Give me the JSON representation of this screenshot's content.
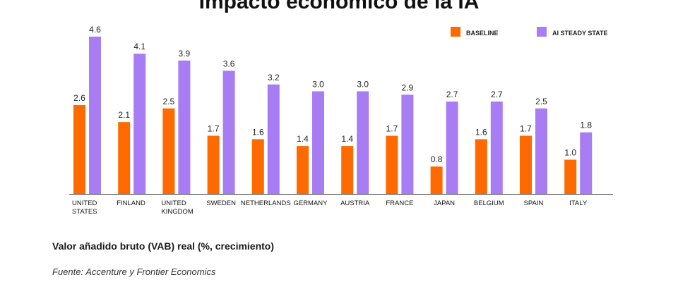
{
  "chart_data": {
    "type": "bar",
    "title": "Impacto económico de la IA",
    "categories": [
      [
        "UNITED",
        "STATES"
      ],
      [
        "FINLAND"
      ],
      [
        "UNITED",
        "KINGDOM"
      ],
      [
        "SWEDEN"
      ],
      [
        "NETHERLANDS"
      ],
      [
        "GERMANY"
      ],
      [
        "AUSTRIA"
      ],
      [
        "FRANCE"
      ],
      [
        "JAPAN"
      ],
      [
        "BELGIUM"
      ],
      [
        "SPAIN"
      ],
      [
        "ITALY"
      ]
    ],
    "series": [
      {
        "name": "BASELINE",
        "color": "#ff6a00",
        "values": [
          2.6,
          2.1,
          2.5,
          1.7,
          1.6,
          1.4,
          1.4,
          1.7,
          0.8,
          1.6,
          1.7,
          1.0
        ]
      },
      {
        "name": "AI STEADY STATE",
        "color": "#a87cf2",
        "values": [
          4.6,
          4.1,
          3.9,
          3.6,
          3.2,
          3.0,
          3.0,
          2.9,
          2.7,
          2.7,
          2.5,
          1.8
        ]
      }
    ],
    "legend_position": "top-right",
    "grid": false
  },
  "caption": "Valor añadido bruto (VAB) real (%, crecimiento)",
  "source": "Fuente: Accenture y Frontier Economics"
}
